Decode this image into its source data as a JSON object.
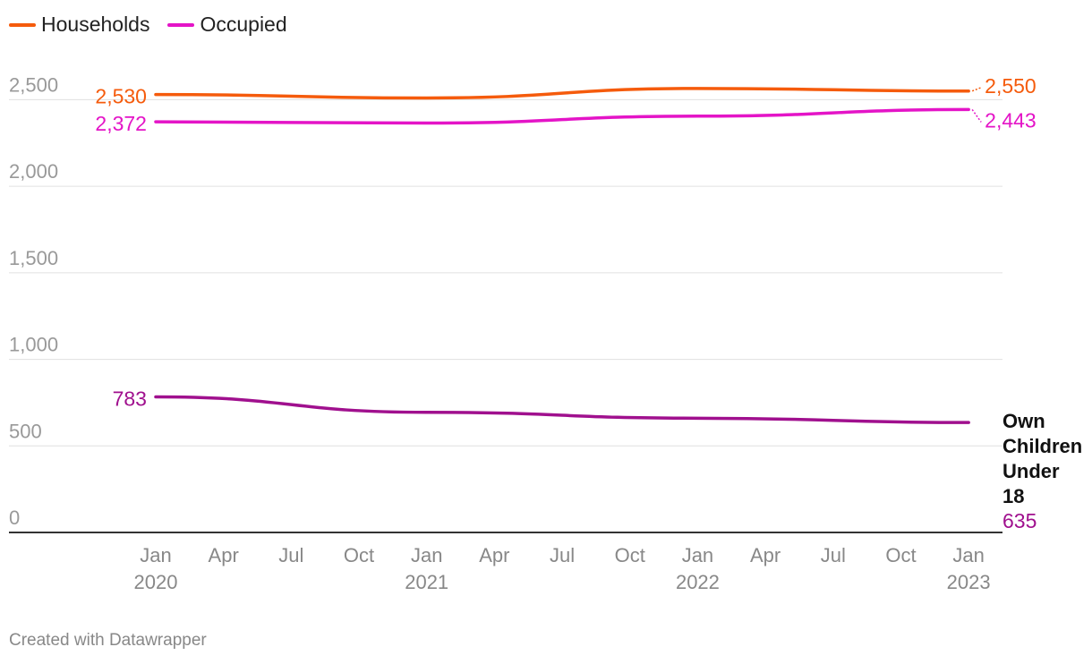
{
  "chart_data": {
    "type": "line",
    "x_ticks": [
      {
        "t": 0,
        "month": "Jan",
        "year": "2020"
      },
      {
        "t": 3,
        "month": "Apr",
        "year": ""
      },
      {
        "t": 6,
        "month": "Jul",
        "year": ""
      },
      {
        "t": 9,
        "month": "Oct",
        "year": ""
      },
      {
        "t": 12,
        "month": "Jan",
        "year": "2021"
      },
      {
        "t": 15,
        "month": "Apr",
        "year": ""
      },
      {
        "t": 18,
        "month": "Jul",
        "year": ""
      },
      {
        "t": 21,
        "month": "Oct",
        "year": ""
      },
      {
        "t": 24,
        "month": "Jan",
        "year": "2022"
      },
      {
        "t": 27,
        "month": "Apr",
        "year": ""
      },
      {
        "t": 30,
        "month": "Jul",
        "year": ""
      },
      {
        "t": 33,
        "month": "Oct",
        "year": ""
      },
      {
        "t": 36,
        "month": "Jan",
        "year": "2023"
      }
    ],
    "x": [
      0,
      12,
      24,
      36
    ],
    "xlim": [
      -6.5,
      37.5
    ],
    "ylim": [
      0,
      2590
    ],
    "y_ticks": [
      0,
      500,
      1000,
      1500,
      2000,
      2500
    ],
    "y_tick_labels": [
      "0",
      "500",
      "1,000",
      "1,500",
      "2,000",
      "2,500"
    ],
    "series": [
      {
        "name": "Households",
        "color": "#f55b0c",
        "values": [
          2530,
          2510,
          2565,
          2550
        ],
        "start_label": "2,530",
        "end_label": "2,550",
        "in_legend": true
      },
      {
        "name": "Occupied",
        "color": "#e414c7",
        "values": [
          2372,
          2365,
          2405,
          2443
        ],
        "start_label": "2,372",
        "end_label": "2,443",
        "in_legend": true
      },
      {
        "name": "Own Children Under 18",
        "color": "#a0108e",
        "values": [
          783,
          694,
          660,
          635
        ],
        "start_label": "783",
        "end_label": "635",
        "in_legend": false,
        "name_lines": [
          "Own",
          "Children",
          "Under",
          "18"
        ]
      }
    ]
  },
  "legend": {
    "households": "Households",
    "occupied": "Occupied"
  },
  "footer": "Created with Datawrapper",
  "colors": {
    "grid": "#e0e0e0",
    "axis": "#333333",
    "tick_text": "#999999",
    "x_tick_text": "#888888"
  }
}
